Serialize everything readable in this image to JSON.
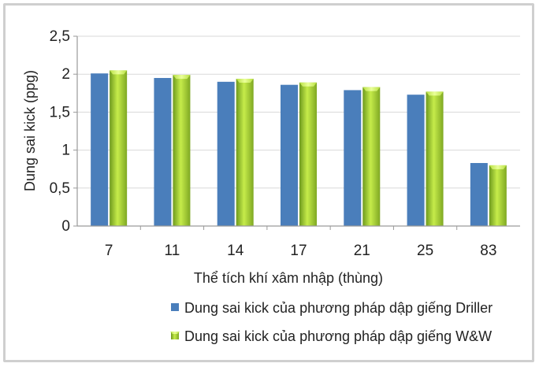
{
  "chart_data": {
    "type": "bar",
    "title": "",
    "xlabel": "Thể tích khí xâm nhập (thùng)",
    "ylabel": "Dung sai kick (ppg)",
    "categories": [
      "7",
      "11",
      "14",
      "17",
      "21",
      "25",
      "83"
    ],
    "ylim": [
      0,
      2.5
    ],
    "yticks": [
      "0",
      "0,5",
      "1",
      "1,5",
      "2",
      "2,5"
    ],
    "grid": true,
    "legend_position": "bottom",
    "series": [
      {
        "name": "Dung sai kick của phương pháp dập giếng Driller",
        "values": [
          2.01,
          1.95,
          1.9,
          1.86,
          1.79,
          1.73,
          0.83
        ],
        "color": "#4a7ebb"
      },
      {
        "name": "Dung sai kick của phương pháp dập giếng W&W",
        "values": [
          2.05,
          1.99,
          1.94,
          1.89,
          1.83,
          1.77,
          0.8
        ],
        "color": "#9acd32"
      }
    ]
  }
}
